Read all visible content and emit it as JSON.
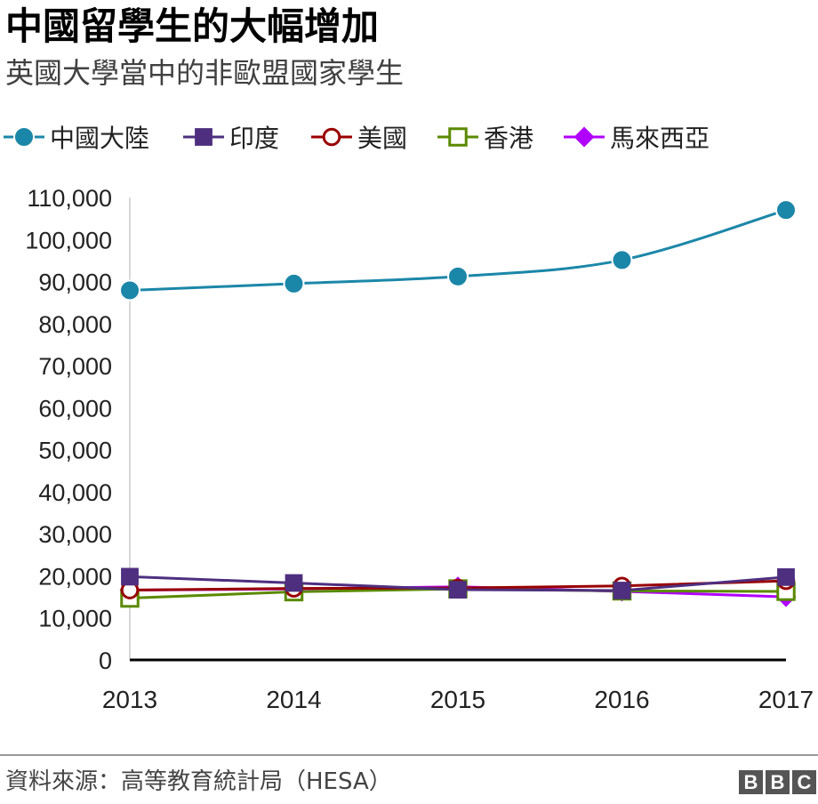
{
  "header": {
    "title": "中國留學生的大幅增加",
    "subtitle": "英國大學當中的非歐盟國家學生"
  },
  "chart_data": {
    "type": "line",
    "title": "中國留學生的大幅增加",
    "subtitle": "英國大學當中的非歐盟國家學生",
    "xlabel": "",
    "ylabel": "",
    "x": [
      "2013",
      "2014",
      "2015",
      "2016",
      "2017"
    ],
    "ylim": [
      0,
      110000
    ],
    "yticks": [
      0,
      10000,
      20000,
      30000,
      40000,
      50000,
      60000,
      70000,
      80000,
      90000,
      100000,
      110000
    ],
    "ytick_labels": [
      "0",
      "10,000",
      "20,000",
      "30,000",
      "40,000",
      "50,000",
      "60,000",
      "70,000",
      "80,000",
      "90,000",
      "100,000",
      "110,000"
    ],
    "grid": false,
    "legend_position": "top",
    "series": [
      {
        "name": "中國大陸",
        "color": "#1b87a8",
        "marker": "circle",
        "values": [
          87900,
          89500,
          91200,
          95100,
          107000
        ]
      },
      {
        "name": "印度",
        "color": "#4e2f7f",
        "marker": "square",
        "values": [
          19800,
          18300,
          16700,
          16500,
          19700
        ]
      },
      {
        "name": "美國",
        "color": "#990000",
        "marker": "circle-open",
        "values": [
          16600,
          17000,
          17100,
          17600,
          18800
        ]
      },
      {
        "name": "香港",
        "color": "#5a8a00",
        "marker": "square-open",
        "values": [
          14700,
          16200,
          16900,
          16400,
          16300
        ]
      },
      {
        "name": "馬來西亞",
        "color": "#b000ff",
        "marker": "diamond",
        "values": [
          16600,
          16900,
          17400,
          16300,
          15000
        ]
      }
    ]
  },
  "footer": {
    "source": "資料來源：高等教育統計局（HESA）",
    "logo_letters": [
      "B",
      "B",
      "C"
    ]
  }
}
